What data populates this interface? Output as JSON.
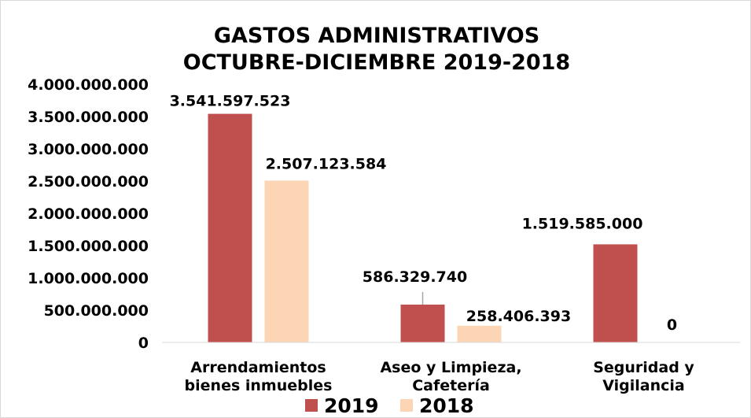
{
  "chart_data": {
    "type": "bar",
    "title": [
      "GASTOS ADMINISTRATIVOS",
      "OCTUBRE-DICIEMBRE 2019-2018"
    ],
    "categories": [
      [
        "Arrendamientos",
        "bienes inmuebles"
      ],
      [
        "Aseo y Limpieza,",
        "Cafetería"
      ],
      [
        "Seguridad y",
        "Vigilancia"
      ]
    ],
    "series": [
      {
        "name": "2019",
        "color": "#c0504d",
        "values": [
          3541597523,
          586329740,
          1519585000
        ],
        "labels": [
          "3.541.597.523",
          "586.329.740",
          "1.519.585.000"
        ]
      },
      {
        "name": "2018",
        "color": "#fcd5b5",
        "values": [
          2507123584,
          258406393,
          0
        ],
        "labels": [
          "2.507.123.584",
          "258.406.393",
          "0"
        ]
      }
    ],
    "ylim": [
      0,
      4000000000
    ],
    "yticks": [
      {
        "value": 0,
        "label": "0"
      },
      {
        "value": 500000000,
        "label": "500.000.000"
      },
      {
        "value": 1000000000,
        "label": "1.000.000.000"
      },
      {
        "value": 1500000000,
        "label": "1.500.000.000"
      },
      {
        "value": 2000000000,
        "label": "2.000.000.000"
      },
      {
        "value": 2500000000,
        "label": "2.500.000.000"
      },
      {
        "value": 3000000000,
        "label": "3.000.000.000"
      },
      {
        "value": 3500000000,
        "label": "3.500.000.000"
      },
      {
        "value": 4000000000,
        "label": "4.000.000.000"
      }
    ],
    "xlabel": "",
    "ylabel": "",
    "grid": false,
    "legend": "bottom"
  }
}
